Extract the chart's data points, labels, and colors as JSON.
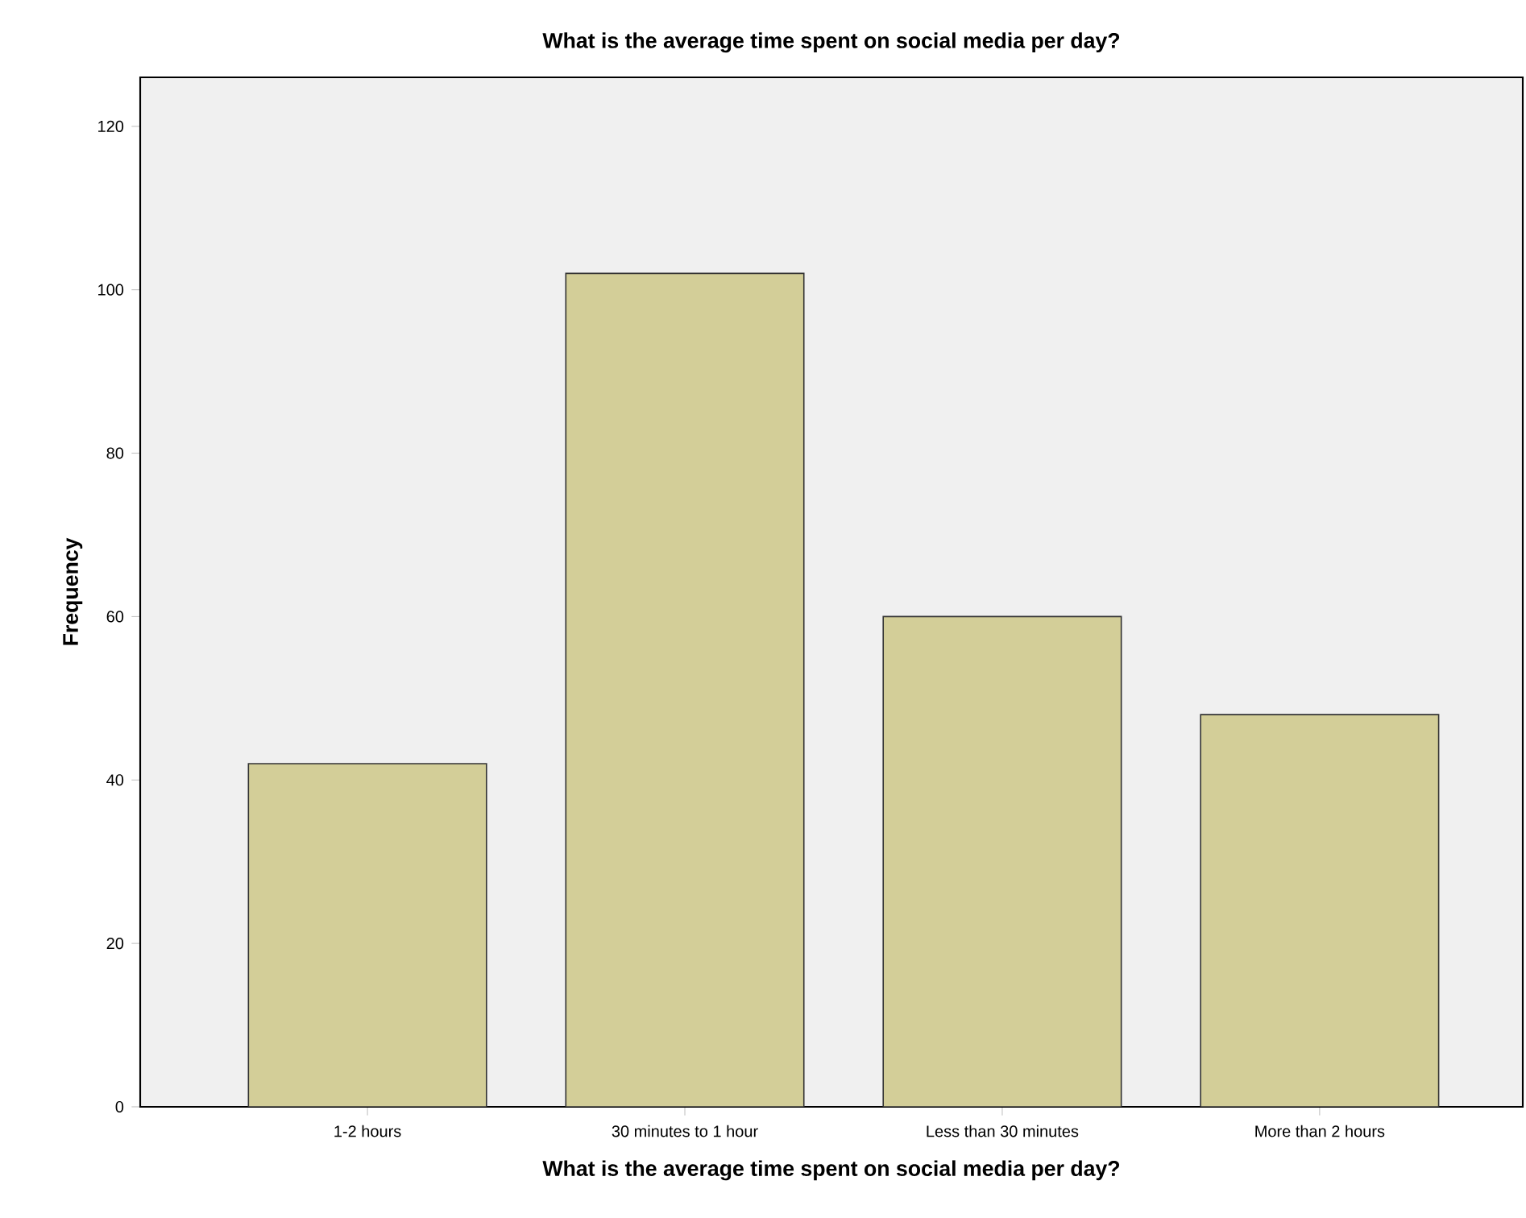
{
  "chart_data": {
    "type": "bar",
    "title": "What is the average time spent on social media per day?",
    "xlabel": "What is the average time spent on social media per day?",
    "ylabel": "Frequency",
    "categories": [
      "1-2 hours",
      "30 minutes to 1 hour",
      "Less than 30 minutes",
      "More than 2 hours"
    ],
    "values": [
      42,
      102,
      60,
      48
    ],
    "color": "#d3ce98",
    "ylim": [
      0,
      126
    ],
    "yticks": [
      0,
      20,
      40,
      60,
      80,
      100,
      120
    ],
    "grid": false
  }
}
